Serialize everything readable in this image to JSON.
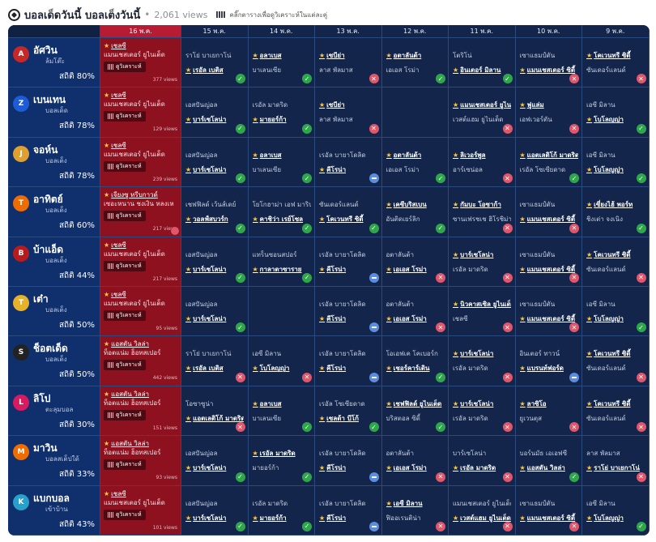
{
  "header": {
    "title": "บอลเด็ดวันนี้ บอลเต็งวันนี้",
    "views": "2,061 views",
    "hint": "คลิ๊กตารางเพื่อดูวิเคราะห์ในแต่ละคู่"
  },
  "dates": [
    "16 พ.ค.",
    "15 พ.ค.",
    "14 พ.ค.",
    "13 พ.ค.",
    "12 พ.ค.",
    "11 พ.ค.",
    "10 พ.ค.",
    "9 พ.ค."
  ],
  "analyze_label": "ดูวิเคราะห์",
  "colors": {
    "board": "#102142",
    "today": "#b71c34",
    "win": "#2ea74a",
    "lose": "#e0566b",
    "draw": "#5a8de0",
    "star": "#ffc83d"
  },
  "tipsters": [
    {
      "name": "อัศวิน",
      "sub": "ล้มโต๊ะ",
      "stat": "สถิติ 80%",
      "logo_color": "#c62828",
      "logo": "A",
      "today": {
        "pick": "เชลซี",
        "line2": "แมนเชสเตอร์ ยูไนเต็ด",
        "views": "377 views"
      },
      "history": [
        {
          "l1": "ราโย่ บาเยกาโน่",
          "l2": "เรอัล เบติส",
          "p": 2,
          "r": "win"
        },
        {
          "l1": "อลาเบส",
          "l2": "บาเลนเซีย",
          "p": 1,
          "r": "win"
        },
        {
          "l1": "เซบีย่า",
          "l2": "ลาส พัลมาส",
          "p": 1,
          "r": "lose"
        },
        {
          "l1": "อตาลันต้า",
          "l2": "เอเอส โรม่า",
          "p": 1,
          "r": "win"
        },
        {
          "l1": "โตริโน่",
          "l2": "อินเตอร์ มิลาน",
          "p": 2,
          "r": "win"
        },
        {
          "l1": "เซาแธมป์ตัน",
          "l2": "แมนเชสเตอร์ ซิตี้",
          "p": 2,
          "r": "lose"
        },
        {
          "l1": "โคเวนทรี ซิตี้",
          "l2": "ซันเดอร์แลนด์",
          "p": 1,
          "r": "lose"
        }
      ]
    },
    {
      "name": "เบนเทน",
      "sub": "บอลเด็ด",
      "stat": "สถิติ 78%",
      "logo_color": "#1e5bd6",
      "logo": "Z",
      "today": {
        "pick": "เชลซี",
        "line2": "แมนเชสเตอร์ ยูไนเต็ด",
        "views": "129 views"
      },
      "history": [
        {
          "l1": "เอสปันญ่อล",
          "l2": "บาร์เซโลน่า",
          "p": 2,
          "r": "win"
        },
        {
          "l1": "เรอัล มาดริด",
          "l2": "มายอร์ก้า",
          "p": 2,
          "r": "win"
        },
        {
          "l1": "เซบีย่า",
          "l2": "ลาส พัลมาส",
          "p": 1,
          "r": "lose"
        },
        {
          "l1": "",
          "l2": "",
          "p": 0,
          "r": ""
        },
        {
          "l1": "แมนเชสเตอร์ ยูไนเต็ด",
          "l2": "เวสต์แฮม ยูไนเต็ด",
          "p": 1,
          "r": "lose"
        },
        {
          "l1": "ฟูแล่ม",
          "l2": "เอฟเวอร์ตัน",
          "p": 1,
          "r": "lose"
        },
        {
          "l1": "เอซี มิลาน",
          "l2": "โบโลญญ่า",
          "p": 2,
          "r": "win"
        }
      ]
    },
    {
      "name": "จอห์น",
      "sub": "บอลเต็ง",
      "stat": "สถิติ 78%",
      "logo_color": "#e0a030",
      "logo": "J",
      "today": {
        "pick": "เชลซี",
        "line2": "แมนเชสเตอร์ ยูไนเต็ด",
        "views": "239 views"
      },
      "history": [
        {
          "l1": "เอสปันญ่อล",
          "l2": "บาร์เซโลน่า",
          "p": 2,
          "r": "win"
        },
        {
          "l1": "อลาเบส",
          "l2": "บาเลนเซีย",
          "p": 1,
          "r": "win"
        },
        {
          "l1": "เรอัล บายาโดลิด",
          "l2": "คีโรน่า",
          "p": 2,
          "r": "draw"
        },
        {
          "l1": "อตาลันต้า",
          "l2": "เอเอส โรม่า",
          "p": 1,
          "r": "win"
        },
        {
          "l1": "ลิเวอร์พูล",
          "l2": "อาร์เซน่อล",
          "p": 1,
          "r": "lose"
        },
        {
          "l1": "แอตเลติโก้ มาดริด",
          "l2": "เรอัล โซเซียดาด",
          "p": 1,
          "r": "win"
        },
        {
          "l1": "เอซี มิลาน",
          "l2": "โบโลญญ่า",
          "p": 2,
          "r": "win"
        }
      ]
    },
    {
      "name": "อาทิตย์",
      "sub": "บอลเต็ง",
      "stat": "สถิติ 60%",
      "logo_color": "#ef6c00",
      "logo": "T",
      "today": {
        "pick": "เจียงซู ทรีบกาวด์",
        "line2": "เซอะหนาน ชงเงิน หลงเห",
        "views": "217 views",
        "badge": "lose"
      },
      "history": [
        {
          "l1": "เชฟฟิลด์ เว้นส์เดย์",
          "l2": "วอลฟ์สบวร์ก",
          "p": 2,
          "r": "win"
        },
        {
          "l1": "โยโกฮาม่า เอฟ มารินอส",
          "l2": "คาชิว่า เรย์โซล",
          "p": 2,
          "r": "win"
        },
        {
          "l1": "ซันเดอร์แลนด์",
          "l2": "โคเวนทรี ซิตี้",
          "p": 2,
          "r": "win"
        },
        {
          "l1": "เคซีบริสเบน",
          "l2": "อันติดเยร์ลิก",
          "p": 1,
          "r": "win"
        },
        {
          "l1": "กัมบะ โอซาก้า",
          "l2": "ซานเฟรชเช ฮิโรชิม่า",
          "p": 1,
          "r": "lose"
        },
        {
          "l1": "เซาแธมป์ตัน",
          "l2": "แมนเชสเตอร์ ซิตี้",
          "p": 2,
          "r": "lose"
        },
        {
          "l1": "เซี่ยงไฮ้ พอร์ท",
          "l2": "ชิงเต่า จงเนิง",
          "p": 1,
          "r": "win"
        }
      ]
    },
    {
      "name": "บ้าแอ็ด",
      "sub": "บอลเต็ง",
      "stat": "สถิติ 44%",
      "logo_color": "#b71c1c",
      "logo": "B",
      "today": {
        "pick": "เชลซี",
        "line2": "แมนเชสเตอร์ ยูไนเต็ด",
        "views": "217 views"
      },
      "history": [
        {
          "l1": "เอสปันญ่อล",
          "l2": "บาร์เซโลน่า",
          "p": 2,
          "r": "win"
        },
        {
          "l1": "แทร็นซอนสปอร์",
          "l2": "กาลาตาซาราย",
          "p": 2,
          "r": "win"
        },
        {
          "l1": "เรอัล บายาโดลิด",
          "l2": "คีโรน่า",
          "p": 2,
          "r": "draw"
        },
        {
          "l1": "อตาลันต้า",
          "l2": "เอเอส โรม่า",
          "p": 2,
          "r": "lose"
        },
        {
          "l1": "บาร์เซโลน่า",
          "l2": "เรอัล มาดริด",
          "p": 1,
          "r": "lose"
        },
        {
          "l1": "เซาแธมป์ตัน",
          "l2": "แมนเชสเตอร์ ซิตี้",
          "p": 2,
          "r": "lose"
        },
        {
          "l1": "โคเวนทรี ซิตี้",
          "l2": "ซันเดอร์แลนด์",
          "p": 1,
          "r": "lose"
        }
      ]
    },
    {
      "name": "เต๋า",
      "sub": "บอลเต็ง",
      "stat": "สถิติ 50%",
      "logo_color": "#e5b22a",
      "logo": "T",
      "today": {
        "pick": "เชลซี",
        "line2": "แมนเชสเตอร์ ยูไนเต็ด",
        "views": "95 views"
      },
      "history": [
        {
          "l1": "เอสปันญ่อล",
          "l2": "บาร์เซโลน่า",
          "p": 2,
          "r": "win"
        },
        {
          "l1": "",
          "l2": "",
          "p": 0,
          "r": ""
        },
        {
          "l1": "เรอัล บายาโดลิด",
          "l2": "คีโรน่า",
          "p": 2,
          "r": "draw"
        },
        {
          "l1": "อตาลันต้า",
          "l2": "เอเอส โรม่า",
          "p": 2,
          "r": "lose"
        },
        {
          "l1": "นิวคาสเซิล ยูไนเต็ด",
          "l2": "เชลซี",
          "p": 1,
          "r": "lose"
        },
        {
          "l1": "เซาแธมป์ตัน",
          "l2": "แมนเชสเตอร์ ซิตี้",
          "p": 2,
          "r": "lose"
        },
        {
          "l1": "เอซี มิลาน",
          "l2": "โบโลญญ่า",
          "p": 2,
          "r": "win"
        }
      ]
    },
    {
      "name": "ช็อตเด็ด",
      "sub": "บอลเต็ง",
      "stat": "สถิติ 50%",
      "logo_color": "#222222",
      "logo": "S",
      "today": {
        "pick": "แอสตัน วิลล่า",
        "line2": "ท็อตแน่ม ฮ็อทสเปอร์",
        "views": "442 views"
      },
      "history": [
        {
          "l1": "ราโย่ บาเยกาโน่",
          "l2": "เรอัล เบติส",
          "p": 2,
          "r": "lose"
        },
        {
          "l1": "เอซี มิลาน",
          "l2": "โบโลญญ่า",
          "p": 2,
          "r": "lose"
        },
        {
          "l1": "เรอัล บายาโดลิด",
          "l2": "คีโรน่า",
          "p": 2,
          "r": "draw"
        },
        {
          "l1": "โอเอฟเค โคเบอร์ก",
          "l2": "เชอร์คาร์เดิน",
          "p": 2,
          "r": "win"
        },
        {
          "l1": "บาร์เซโลน่า",
          "l2": "เรอัล มาดริด",
          "p": 1,
          "r": "lose"
        },
        {
          "l1": "อินเตอร์ ทาวน์",
          "l2": "แบรนท์ฟอร์ด",
          "p": 2,
          "r": "draw"
        },
        {
          "l1": "โคเวนทรี ซิตี้",
          "l2": "ซันเดอร์แลนด์",
          "p": 1,
          "r": "lose"
        }
      ]
    },
    {
      "name": "ลิโป",
      "sub": "ตะลุมบอล",
      "stat": "สถิติ 30%",
      "logo_color": "#d81b60",
      "logo": "L",
      "today": {
        "pick": "แอสตัน วิลล่า",
        "line2": "ท็อตแน่ม ฮ็อทสเปอร์",
        "views": "151 views"
      },
      "history": [
        {
          "l1": "โอซาซูน่า",
          "l2": "แอตเลติโก้ มาดริด",
          "p": 2,
          "r": "lose"
        },
        {
          "l1": "อลาเบส",
          "l2": "บาเลนเซีย",
          "p": 1,
          "r": "win"
        },
        {
          "l1": "เรอัล โซเซียดาด",
          "l2": "เซลต้า บีโก้",
          "p": 2,
          "r": "win"
        },
        {
          "l1": "เชฟฟิลด์ ยูไนเต็ด",
          "l2": "บริสตอล ซิตี้",
          "p": 1,
          "r": "win"
        },
        {
          "l1": "บาร์เซโลน่า",
          "l2": "เรอัล มาดริด",
          "p": 1,
          "r": "lose"
        },
        {
          "l1": "ลาซิโอ",
          "l2": "ยูเวนตุส",
          "p": 1,
          "r": "lose"
        },
        {
          "l1": "โคเวนทรี ซิตี้",
          "l2": "ซันเดอร์แลนด์",
          "p": 1,
          "r": "lose"
        }
      ]
    },
    {
      "name": "มาวิน",
      "sub": "บอลสเต็ปใด้",
      "stat": "สถิติ 33%",
      "logo_color": "#ef6c00",
      "logo": "M",
      "today": {
        "pick": "แอสตัน วิลล่า",
        "line2": "ท็อตแน่ม ฮ็อทสเปอร์",
        "views": "93 views"
      },
      "history": [
        {
          "l1": "เอสปันญ่อล",
          "l2": "บาร์เซโลน่า",
          "p": 2,
          "r": "win"
        },
        {
          "l1": "เรอัล มาดริด",
          "l2": "มายอร์ก้า",
          "p": 1,
          "r": "win"
        },
        {
          "l1": "เรอัล บายาโดลิด",
          "l2": "คีโรน่า",
          "p": 2,
          "r": "draw"
        },
        {
          "l1": "อตาลันต้า",
          "l2": "เอเอส โรม่า",
          "p": 2,
          "r": "lose"
        },
        {
          "l1": "บาร์เซโลน่า",
          "l2": "เรอัล มาดริด",
          "p": 2,
          "r": "lose"
        },
        {
          "l1": "บอร์นมัธ เอเอฟซี",
          "l2": "แอสตัน วิลล่า",
          "p": 2,
          "r": "win"
        },
        {
          "l1": "ลาส พัลมาส",
          "l2": "ราโย่ บาเยกาโน่",
          "p": 2,
          "r": "lose"
        }
      ]
    },
    {
      "name": "แบกบอล",
      "sub": "เข้าบ้าน",
      "stat": "สถิติ 43%",
      "logo_color": "#29a0c8",
      "logo": "K",
      "today": {
        "pick": "เชลซี",
        "line2": "แมนเชสเตอร์ ยูไนเต็ด",
        "views": "101 views"
      },
      "history": [
        {
          "l1": "เอสปันญ่อล",
          "l2": "บาร์เซโลน่า",
          "p": 2,
          "r": "win"
        },
        {
          "l1": "เรอัล มาดริด",
          "l2": "มายอร์ก้า",
          "p": 2,
          "r": "win"
        },
        {
          "l1": "เรอัล บายาโดลิด",
          "l2": "คีโรน่า",
          "p": 2,
          "r": "draw"
        },
        {
          "l1": "เอซี มิลาน",
          "l2": "ฟิออเรนติน่า",
          "p": 1,
          "r": "lose"
        },
        {
          "l1": "แมนเชสเตอร์ ยูไนเต็ด",
          "l2": "เวสต์แฮม ยูไนเต็ด",
          "p": 2,
          "r": "lose"
        },
        {
          "l1": "เซาแธมป์ตัน",
          "l2": "แมนเชสเตอร์ ซิตี้",
          "p": 2,
          "r": "lose"
        },
        {
          "l1": "เอซี มิลาน",
          "l2": "โบโลญญ่า",
          "p": 2,
          "r": "win"
        }
      ]
    }
  ]
}
